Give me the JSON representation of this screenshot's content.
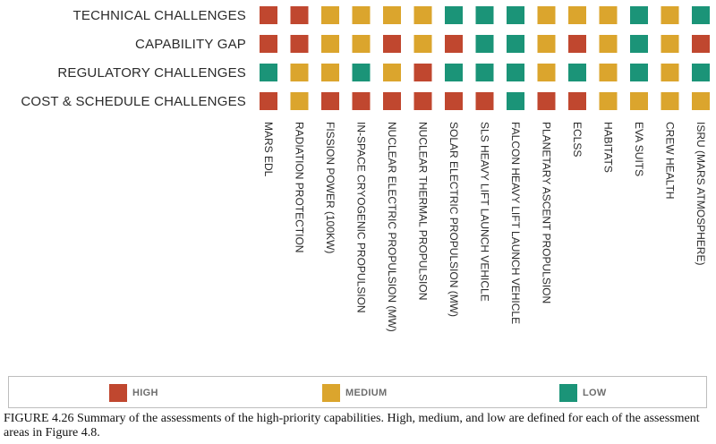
{
  "colors": {
    "high": "#c0472f",
    "medium": "#dba52d",
    "low": "#1b9478"
  },
  "chart_data": {
    "type": "heatmap",
    "rows": [
      "TECHNICAL CHALLENGES",
      "CAPABILITY GAP",
      "REGULATORY CHALLENGES",
      "COST & SCHEDULE CHALLENGES"
    ],
    "columns": [
      "MARS EDL",
      "RADIATION PROTECTION",
      "FISSION POWER (100KW)",
      "IN-SPACE CRYOGENIC PROPULSION",
      "NUCLEAR ELECTRIC PROPULSION (MW)",
      "NUCLEAR THERMAL PROPULSION",
      "SOLAR ELECTRIC PROPULSION (MW)",
      "SLS HEAVY LIFT LAUNCH VEHICLE",
      "FALCON HEAVY LIFT LAUNCH VEHICLE",
      "PLANETARY ASCENT PROPULSION",
      "ECLSS",
      "HABITATS",
      "EVA SUITS",
      "CREW HEALTH",
      "ISRU (MARS ATMOSPHERE)"
    ],
    "values": [
      [
        "high",
        "high",
        "medium",
        "medium",
        "medium",
        "medium",
        "low",
        "low",
        "low",
        "medium",
        "medium",
        "medium",
        "low",
        "medium",
        "low"
      ],
      [
        "high",
        "high",
        "medium",
        "medium",
        "high",
        "medium",
        "high",
        "low",
        "low",
        "medium",
        "high",
        "medium",
        "low",
        "medium",
        "high"
      ],
      [
        "low",
        "medium",
        "medium",
        "low",
        "medium",
        "high",
        "low",
        "low",
        "low",
        "medium",
        "low",
        "medium",
        "low",
        "medium",
        "low"
      ],
      [
        "high",
        "medium",
        "high",
        "high",
        "high",
        "high",
        "high",
        "high",
        "low",
        "high",
        "high",
        "medium",
        "medium",
        "medium",
        "medium"
      ]
    ],
    "legend": [
      {
        "key": "high",
        "label": "HIGH"
      },
      {
        "key": "medium",
        "label": "MEDIUM"
      },
      {
        "key": "low",
        "label": "LOW"
      }
    ],
    "legend_position": "bottom"
  },
  "caption": "FIGURE 4.26 Summary of the assessments of the high-priority capabilities. High, medium, and low are defined for each of the assessment areas in Figure 4.8."
}
